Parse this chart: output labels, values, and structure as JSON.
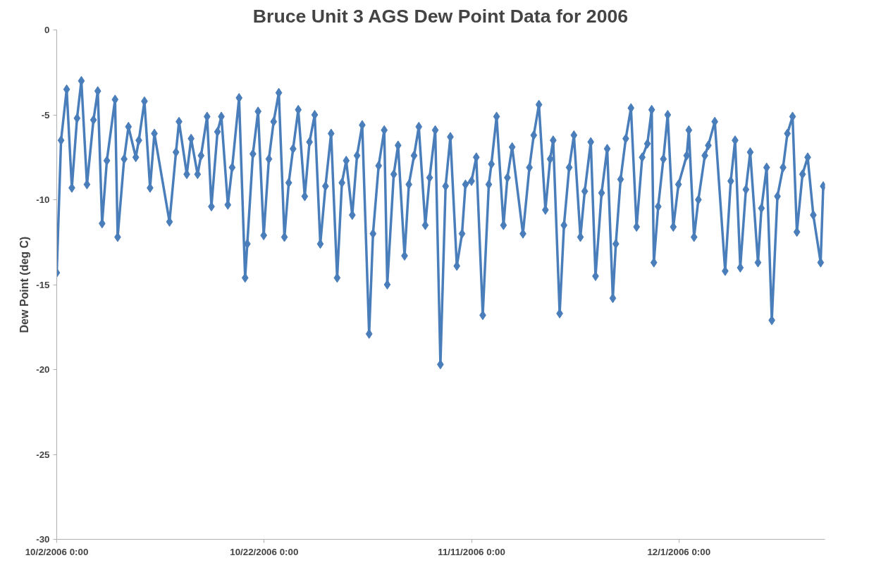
{
  "chart_data": {
    "type": "line",
    "title": "Bruce Unit 3 AGS Dew Point Data for 2006",
    "ylabel": "Dew Point (deg C)",
    "xlim": [
      "2006-10-02T00:00",
      "2006-12-15T02:00"
    ],
    "xticks": [
      {
        "value": "2006-10-02",
        "label": "10/2/2006 0:00"
      },
      {
        "value": "2006-10-22",
        "label": "10/22/2006 0:00"
      },
      {
        "value": "2006-11-11",
        "label": "11/11/2006 0:00"
      },
      {
        "value": "2006-12-01",
        "label": "12/1/2006 0:00"
      }
    ],
    "ylim": [
      -30,
      0
    ],
    "yticks": [
      -30,
      -25,
      -20,
      -15,
      -10,
      -5,
      0
    ],
    "grid": false,
    "marker": "diamond",
    "line_style": "solid",
    "series": [
      {
        "color": "#4a7ebb",
        "x": [
          "2006-10-02T00:00",
          "2006-10-02T10:00",
          "2006-10-02T23:00",
          "2006-10-03T11:00",
          "2006-10-03T23:00",
          "2006-10-04T09:00",
          "2006-10-04T22:00",
          "2006-10-05T13:00",
          "2006-10-05T23:00",
          "2006-10-06T09:00",
          "2006-10-06T20:00",
          "2006-10-07T15:00",
          "2006-10-07T21:00",
          "2006-10-08T12:00",
          "2006-10-08T22:00",
          "2006-10-09T15:00",
          "2006-10-09T22:00",
          "2006-10-10T11:00",
          "2006-10-11T00:00",
          "2006-10-11T10:00",
          "2006-10-12T21:00",
          "2006-10-13T12:00",
          "2006-10-13T19:00",
          "2006-10-14T13:00",
          "2006-10-14T23:00",
          "2006-10-15T14:00",
          "2006-10-15T22:00",
          "2006-10-16T12:00",
          "2006-10-16T22:00",
          "2006-10-17T12:00",
          "2006-10-17T21:00",
          "2006-10-18T12:00",
          "2006-10-18T22:00",
          "2006-10-19T14:00",
          "2006-10-20T04:00",
          "2006-10-20T09:00",
          "2006-10-20T22:00",
          "2006-10-21T10:00",
          "2006-10-21T23:00",
          "2006-10-22T11:00",
          "2006-10-22T22:00",
          "2006-10-23T10:00",
          "2006-10-23T23:00",
          "2006-10-24T09:00",
          "2006-10-24T19:00",
          "2006-10-25T07:00",
          "2006-10-25T22:00",
          "2006-10-26T09:00",
          "2006-10-26T21:00",
          "2006-10-27T10:00",
          "2006-10-27T22:00",
          "2006-10-28T11:00",
          "2006-10-29T01:00",
          "2006-10-29T12:00",
          "2006-10-29T22:00",
          "2006-10-30T12:00",
          "2006-10-30T23:00",
          "2006-10-31T11:00",
          "2006-11-01T03:00",
          "2006-11-01T12:00",
          "2006-11-02T01:00",
          "2006-11-02T14:00",
          "2006-11-02T21:00",
          "2006-11-03T12:00",
          "2006-11-03T22:00",
          "2006-11-04T13:00",
          "2006-11-04T23:00",
          "2006-11-05T11:00",
          "2006-11-05T22:00",
          "2006-11-06T13:00",
          "2006-11-06T23:00",
          "2006-11-07T12:00",
          "2006-11-08T00:00",
          "2006-11-08T12:00",
          "2006-11-08T23:00",
          "2006-11-09T14:00",
          "2006-11-10T02:00",
          "2006-11-10T10:00",
          "2006-11-11T00:00",
          "2006-11-11T11:00",
          "2006-11-12T02:00",
          "2006-11-12T16:00",
          "2006-11-12T22:00",
          "2006-11-13T10:00",
          "2006-11-14T02:00",
          "2006-11-14T11:00",
          "2006-11-14T22:00",
          "2006-11-15T23:00",
          "2006-11-16T14:00",
          "2006-11-17T00:00",
          "2006-11-17T12:00",
          "2006-11-18T03:00",
          "2006-11-18T14:00",
          "2006-11-18T21:00",
          "2006-11-19T12:00",
          "2006-11-19T22:00",
          "2006-11-20T10:00",
          "2006-11-20T21:00",
          "2006-11-21T12:00",
          "2006-11-21T22:00",
          "2006-11-22T12:00",
          "2006-11-22T23:00",
          "2006-11-23T13:00",
          "2006-11-24T02:00",
          "2006-11-24T15:00",
          "2006-11-24T22:00",
          "2006-11-25T09:00",
          "2006-11-25T21:00",
          "2006-11-26T09:00",
          "2006-11-26T22:00",
          "2006-11-27T11:00",
          "2006-11-27T23:00",
          "2006-11-28T09:00",
          "2006-11-28T14:00",
          "2006-11-29T00:00",
          "2006-11-29T12:00",
          "2006-11-29T22:00",
          "2006-11-30T11:00",
          "2006-11-30T23:00",
          "2006-12-01T18:00",
          "2006-12-01T23:00",
          "2006-12-02T11:00",
          "2006-12-02T21:00",
          "2006-12-03T12:00",
          "2006-12-03T20:00",
          "2006-12-04T11:00",
          "2006-12-05T11:00",
          "2006-12-06T00:00",
          "2006-12-06T10:00",
          "2006-12-06T22:00",
          "2006-12-07T11:00",
          "2006-12-07T21:00",
          "2006-12-08T15:00",
          "2006-12-08T23:00",
          "2006-12-09T11:00",
          "2006-12-09T23:00",
          "2006-12-10T12:00",
          "2006-12-11T01:00",
          "2006-12-11T11:00",
          "2006-12-11T23:00",
          "2006-12-12T09:00",
          "2006-12-12T22:00",
          "2006-12-13T10:00",
          "2006-12-13T23:00",
          "2006-12-14T16:00",
          "2006-12-14T22:00"
        ],
        "values": [
          -14.3,
          -6.5,
          -3.5,
          -9.3,
          -5.2,
          -3.0,
          -9.1,
          -5.3,
          -3.6,
          -11.4,
          -7.7,
          -4.1,
          -12.2,
          -7.6,
          -5.7,
          -7.5,
          -6.5,
          -4.2,
          -9.3,
          -6.1,
          -11.3,
          -7.2,
          -5.4,
          -8.5,
          -6.4,
          -8.5,
          -7.4,
          -5.1,
          -10.4,
          -6.0,
          -5.1,
          -10.3,
          -8.1,
          -4.0,
          -14.6,
          -12.6,
          -7.3,
          -4.8,
          -12.1,
          -7.6,
          -5.4,
          -3.7,
          -12.2,
          -9.0,
          -7.0,
          -4.7,
          -9.8,
          -6.6,
          -5.0,
          -12.6,
          -9.2,
          -6.1,
          -14.6,
          -9.0,
          -7.7,
          -10.9,
          -7.4,
          -5.6,
          -17.9,
          -12.0,
          -8.0,
          -5.9,
          -15.0,
          -8.5,
          -6.8,
          -13.3,
          -9.1,
          -7.4,
          -5.7,
          -11.5,
          -8.7,
          -5.9,
          -19.7,
          -9.2,
          -6.3,
          -13.9,
          -12.0,
          -9.1,
          -8.9,
          -7.5,
          -16.8,
          -9.1,
          -7.9,
          -5.1,
          -11.5,
          -8.7,
          -6.9,
          -12.0,
          -8.1,
          -6.2,
          -4.4,
          -10.6,
          -7.6,
          -6.5,
          -16.7,
          -11.5,
          -8.1,
          -6.2,
          -12.2,
          -9.5,
          -6.6,
          -14.5,
          -9.6,
          -7.0,
          -15.8,
          -12.6,
          -8.8,
          -6.4,
          -4.6,
          -11.6,
          -7.5,
          -6.7,
          -4.7,
          -13.7,
          -10.4,
          -7.6,
          -5.0,
          -11.6,
          -9.1,
          -7.4,
          -5.9,
          -12.2,
          -10.0,
          -7.4,
          -6.8,
          -5.4,
          -14.2,
          -8.9,
          -6.5,
          -14.0,
          -9.4,
          -7.2,
          -13.7,
          -10.5,
          -8.1,
          -17.1,
          -9.8,
          -8.1,
          -6.1,
          -5.1,
          -11.9,
          -8.5,
          -7.5,
          -10.9,
          -13.7,
          -9.2
        ]
      }
    ]
  }
}
